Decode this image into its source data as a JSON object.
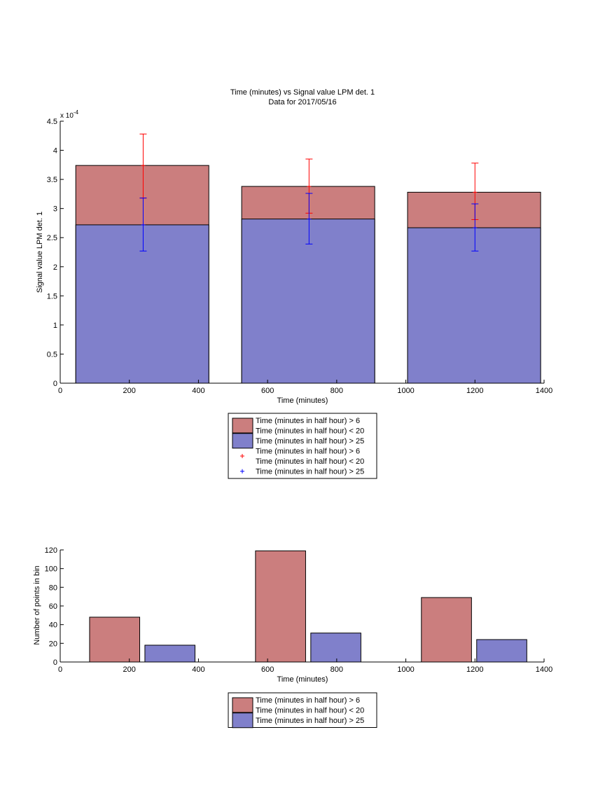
{
  "chart_data": [
    {
      "type": "bar",
      "title": "Time (minutes) vs Signal value LPM det. 1",
      "subtitle": "Data for 2017/05/16",
      "xlabel": "Time (minutes)",
      "ylabel": "Signal value LPM det. 1",
      "y_exponent_label": "x 10",
      "y_exponent_power": "-4",
      "xlim": [
        0,
        1400
      ],
      "ylim": [
        0,
        4.5
      ],
      "x_ticks": [
        "0",
        "200",
        "400",
        "600",
        "800",
        "1000",
        "1200",
        "1400"
      ],
      "y_ticks": [
        "0",
        "0.5",
        "1",
        "1.5",
        "2",
        "2.5",
        "3",
        "3.5",
        "4",
        "4.5"
      ],
      "grid": false,
      "legend_position": "below",
      "bars": [
        {
          "x_start": 45,
          "x_end": 430,
          "red_value": 3.74,
          "blue_value": 2.72
        },
        {
          "x_start": 525,
          "x_end": 910,
          "red_value": 3.38,
          "blue_value": 2.82
        },
        {
          "x_start": 1005,
          "x_end": 1390,
          "red_value": 3.28,
          "blue_value": 2.67
        }
      ],
      "errorbars": [
        {
          "series": "red",
          "x": 240,
          "center": 3.74,
          "low": 3.18,
          "high": 4.28
        },
        {
          "series": "blue",
          "x": 240,
          "center": 2.72,
          "low": 2.27,
          "high": 3.18
        },
        {
          "series": "red",
          "x": 720,
          "center": 3.38,
          "low": 2.92,
          "high": 3.85
        },
        {
          "series": "blue",
          "x": 720,
          "center": 2.82,
          "low": 2.39,
          "high": 3.26
        },
        {
          "series": "red",
          "x": 1200,
          "center": 3.28,
          "low": 2.81,
          "high": 3.78
        },
        {
          "series": "blue",
          "x": 1200,
          "center": 2.67,
          "low": 2.27,
          "high": 3.08
        }
      ],
      "legend": [
        {
          "kind": "patch",
          "color": "red",
          "lines": [
            "Time (minutes in half hour) > 6",
            "Time (minutes in half hour) < 20"
          ]
        },
        {
          "kind": "patch",
          "color": "blue",
          "lines": [
            "Time (minutes in half hour) > 25"
          ]
        },
        {
          "kind": "marker",
          "color": "red",
          "lines": [
            "Time (minutes in half hour) > 6",
            "Time (minutes in half hour) < 20"
          ]
        },
        {
          "kind": "marker",
          "color": "blue",
          "lines": [
            "Time (minutes in half hour) > 25"
          ]
        }
      ]
    },
    {
      "type": "bar",
      "xlabel": "Time (minutes)",
      "ylabel": "Number of points in bin",
      "xlim": [
        0,
        1400
      ],
      "ylim": [
        0,
        120
      ],
      "x_ticks": [
        "0",
        "200",
        "400",
        "600",
        "800",
        "1000",
        "1200",
        "1400"
      ],
      "y_ticks": [
        "0",
        "20",
        "40",
        "60",
        "80",
        "100",
        "120"
      ],
      "grid": false,
      "legend_position": "below",
      "bars": [
        {
          "series": "red",
          "x_start": 85,
          "x_end": 230,
          "value": 48
        },
        {
          "series": "blue",
          "x_start": 245,
          "x_end": 390,
          "value": 18
        },
        {
          "series": "red",
          "x_start": 565,
          "x_end": 710,
          "value": 119
        },
        {
          "series": "blue",
          "x_start": 725,
          "x_end": 870,
          "value": 31
        },
        {
          "series": "red",
          "x_start": 1045,
          "x_end": 1190,
          "value": 69
        },
        {
          "series": "blue",
          "x_start": 1205,
          "x_end": 1350,
          "value": 24
        }
      ],
      "legend": [
        {
          "kind": "patch",
          "color": "red",
          "lines": [
            "Time (minutes in half hour) > 6",
            "Time (minutes in half hour) < 20"
          ]
        },
        {
          "kind": "patch",
          "color": "blue",
          "lines": [
            "Time (minutes in half hour) > 25"
          ]
        }
      ]
    }
  ],
  "colors": {
    "red_fill": "#cb7e7e",
    "blue_fill": "#8080cb",
    "red_line": "#ff0000",
    "blue_line": "#0000ff",
    "axis": "#000000"
  }
}
